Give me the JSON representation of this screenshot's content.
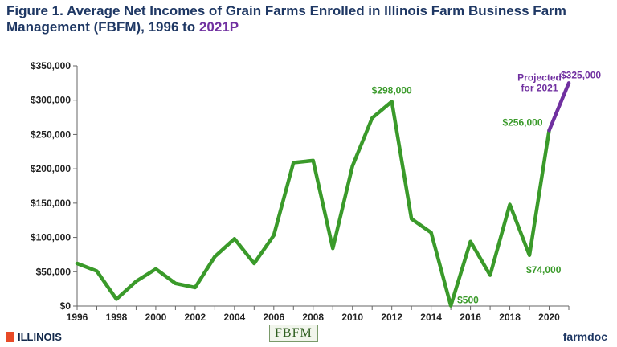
{
  "title": {
    "line1": "Figure 1. Average Net Incomes of Grain Farms Enrolled in Illinois Farm Business Farm",
    "line2_prefix": "Management (FBFM), 1996 to ",
    "line2_highlight": "2021P"
  },
  "colors": {
    "actual": "#3a9a2a",
    "projected": "#7030a0",
    "title": "#1f3864"
  },
  "chart_data": {
    "type": "line",
    "x": [
      1996,
      1997,
      1998,
      1999,
      2000,
      2001,
      2002,
      2003,
      2004,
      2005,
      2006,
      2007,
      2008,
      2009,
      2010,
      2011,
      2012,
      2013,
      2014,
      2015,
      2016,
      2017,
      2018,
      2019,
      2020
    ],
    "series": [
      {
        "values": [
          62000,
          51000,
          10000,
          36000,
          54000,
          33000,
          27000,
          72000,
          98000,
          62000,
          103000,
          209000,
          212000,
          84000,
          204000,
          274000,
          298000,
          127000,
          107000,
          500,
          94000,
          45000,
          148000,
          74000,
          256000
        ]
      }
    ],
    "projection": {
      "from": [
        2020,
        256000
      ],
      "to": [
        2021,
        325000
      ]
    },
    "y_ticks": [
      "$0",
      "$50,000",
      "$100,000",
      "$150,000",
      "$200,000",
      "$250,000",
      "$300,000",
      "$350,000"
    ],
    "x_ticks": [
      "1996",
      "1998",
      "2000",
      "2002",
      "2004",
      "2006",
      "2008",
      "2010",
      "2012",
      "2014",
      "2016",
      "2018",
      "2020"
    ],
    "ylim": [
      0,
      350000
    ],
    "xlim": [
      1996,
      2021
    ],
    "grid": false,
    "annotations": [
      {
        "text": "$298,000",
        "x": 2012,
        "y": 298000,
        "color": "green"
      },
      {
        "text": "$256,000",
        "x": 2020,
        "y": 256000,
        "color": "green"
      },
      {
        "text": "$74,000",
        "x": 2019,
        "y": 74000,
        "color": "green"
      },
      {
        "text": "$500",
        "x": 2015,
        "y": 500,
        "color": "green"
      },
      {
        "text": "$325,000",
        "x": 2021,
        "y": 325000,
        "color": "purple"
      },
      {
        "text": "Projected",
        "x": 2020,
        "y": 300000,
        "color": "purple"
      },
      {
        "text": "for 2021",
        "x": 2020,
        "y": 285000,
        "color": "purple"
      }
    ]
  },
  "footer": {
    "illinois": "ILLINOIS",
    "fbfm": "FBFM",
    "farmdoc": "farmdoc"
  }
}
